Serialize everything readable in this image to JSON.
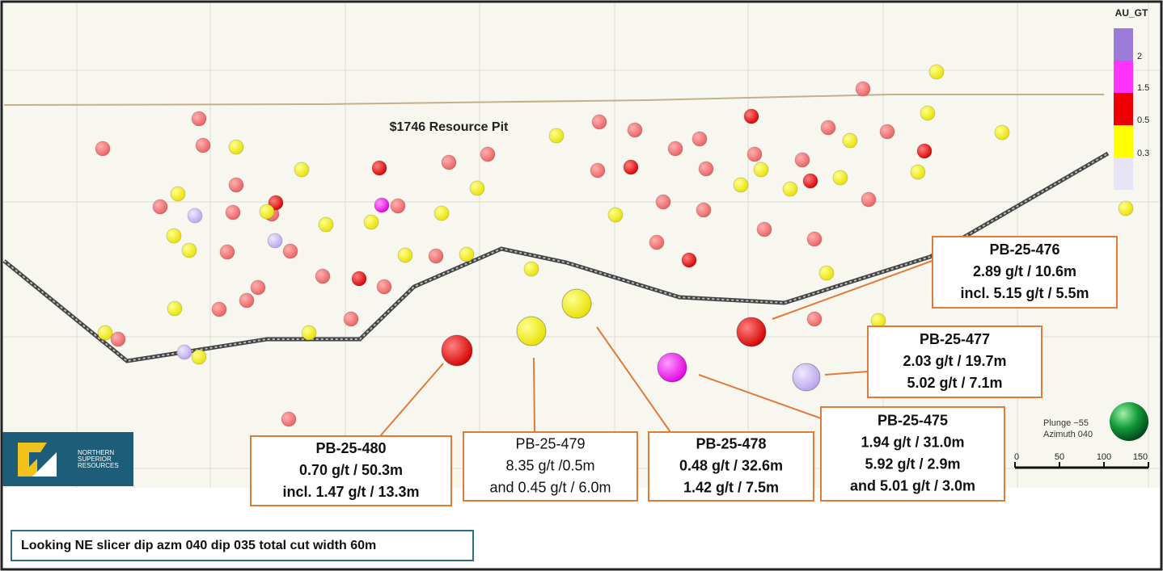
{
  "title": "$1746 Resource Pit",
  "legend": {
    "title": "AU_GT",
    "labels": [
      "2",
      "1.5",
      "0.5",
      "0.3"
    ]
  },
  "callouts": [
    {
      "lines": [
        "PB-25-476",
        "2.89 g/t / 10.6m",
        "incl. 5.15 g/t / 5.5m"
      ]
    },
    {
      "lines": [
        "PB-25-477",
        "2.03 g/t / 19.7m",
        "5.02 g/t / 7.1m"
      ]
    },
    {
      "lines": [
        "PB-25-475",
        "1.94 g/t / 31.0m",
        "5.92 g/t / 2.9m",
        "and 5.01 g/t / 3.0m"
      ]
    },
    {
      "lines": [
        "PB-25-478",
        "0.48 g/t / 32.6m",
        "1.42 g/t / 7.5m"
      ]
    },
    {
      "lines": [
        "PB-25-479",
        "8.35 g/t /0.5m",
        "and 0.45 g/t / 6.0m"
      ]
    },
    {
      "lines": [
        "PB-25-480",
        "0.70 g/t / 50.3m",
        "incl. 1.47 g/t / 13.3m"
      ]
    }
  ],
  "logo": {
    "lines": [
      "NORTHERN",
      "SUPERIOR",
      "RESOURCES"
    ]
  },
  "orientation": {
    "lines": [
      "Plunge −55",
      "Azimuth 040"
    ]
  },
  "scale_bar": {
    "labels": [
      "0",
      "50",
      "100",
      "150"
    ]
  },
  "caption": "Looking NE slicer dip azm 040 dip 035 total cut width 60m"
}
